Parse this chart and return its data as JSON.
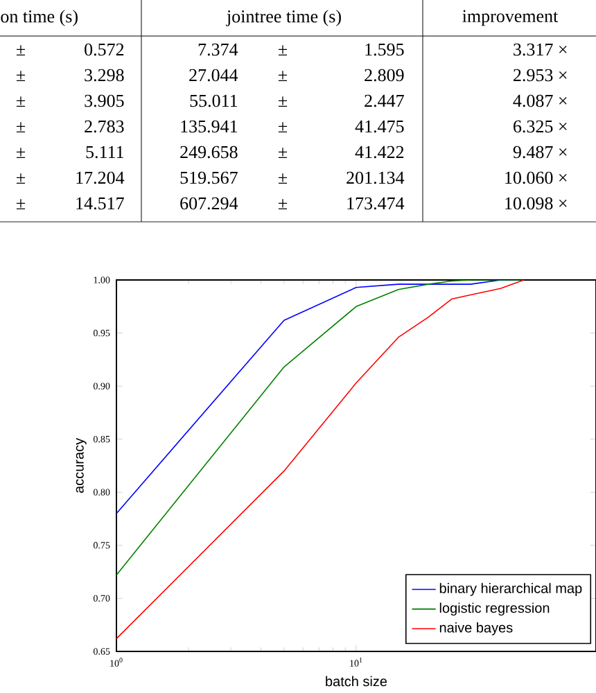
{
  "chart_data": [
    {
      "type": "other",
      "annotations": [
        "on time (s)",
        "jointree time (s)",
        "improvement",
        "±",
        "0.572",
        "7.374",
        "±",
        "1.595",
        "3.317 ×",
        "±",
        "3.298",
        "27.044",
        "±",
        "2.809",
        "2.953 ×",
        "±",
        "3.905",
        "55.011",
        "±",
        "2.447",
        "4.087 ×",
        "±",
        "2.783",
        "135.941",
        "±",
        "41.475",
        "6.325 ×",
        "±",
        "5.111",
        "249.658",
        "±",
        "41.422",
        "9.487 ×",
        "±",
        "17.204",
        "519.567",
        "±",
        "201.134",
        "10.060 ×",
        "±",
        "14.517",
        "607.294",
        "±",
        "173.474",
        "10.098 ×"
      ]
    },
    {
      "type": "line",
      "xlabel": "batch size",
      "ylabel": "accuracy",
      "log": "x",
      "grid": false,
      "legend": "bottom right",
      "x": [
        1,
        5,
        10,
        15,
        20,
        25,
        30,
        40,
        50
      ],
      "xlim": [
        1,
        100
      ],
      "xticks": [
        {
          "value": 1,
          "label": "10$^{0}$"
        },
        {
          "value": 10,
          "label": "10$^{1}$"
        }
      ],
      "ylim": [
        0.65,
        1.0
      ],
      "yticks": [
        0.65,
        {
          "value": 0.7,
          "label": "0.70"
        },
        0.75,
        {
          "value": 0.8,
          "label": "0.80"
        },
        0.85,
        {
          "value": 0.9,
          "label": "0.90"
        },
        0.95,
        {
          "value": 1.0,
          "label": "1.00"
        }
      ],
      "series": [
        {
          "name": "binary hierarchical map",
          "color": "#0000ff",
          "values": [
            0.78,
            0.962,
            0.993,
            0.996,
            0.996,
            0.996,
            0.996,
            1.0,
            1.0
          ]
        },
        {
          "name": "logistic regression",
          "color": "#008000",
          "values": [
            0.722,
            0.918,
            0.975,
            0.991,
            0.996,
            0.999,
            1.0,
            1.0,
            1.0
          ]
        },
        {
          "name": "naive bayes",
          "color": "#ff0000",
          "values": [
            0.662,
            0.82,
            0.903,
            0.946,
            0.965,
            0.982,
            0.986,
            0.992,
            1.0
          ]
        }
      ]
    }
  ]
}
